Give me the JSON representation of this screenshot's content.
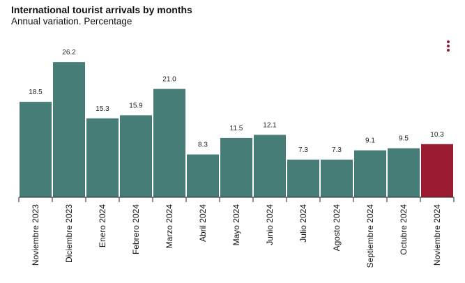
{
  "header": {
    "title": "International tourist arrivals by months",
    "subtitle": "Annual variation. Percentage"
  },
  "menu_icon": "kebab-menu-icon",
  "colors": {
    "bar": "#467e77",
    "highlight": "#9b1b33"
  },
  "chart_data": {
    "type": "bar",
    "title": "International tourist arrivals by months",
    "subtitle": "Annual variation. Percentage",
    "categories": [
      "Noviembre 2023",
      "Diciembre 2023",
      "Enero 2024",
      "Febrero 2024",
      "Marzo 2024",
      "Abril 2024",
      "Mayo 2024",
      "Junio 2024",
      "Julio 2024",
      "Agosto 2024",
      "Septiembre 2024",
      "Octubre 2024",
      "Noviembre 2024"
    ],
    "values": [
      18.5,
      26.2,
      15.3,
      15.9,
      21.0,
      8.3,
      11.5,
      12.1,
      7.3,
      7.3,
      9.1,
      9.5,
      10.3
    ],
    "value_labels": [
      "18.5",
      "26.2",
      "15.3",
      "15.9",
      "21.0",
      "8.3",
      "11.5",
      "12.1",
      "7.3",
      "7.3",
      "9.1",
      "9.5",
      "10.3"
    ],
    "highlight_index": 12,
    "ylim": [
      0,
      30
    ],
    "grid": false,
    "legend": "none"
  }
}
